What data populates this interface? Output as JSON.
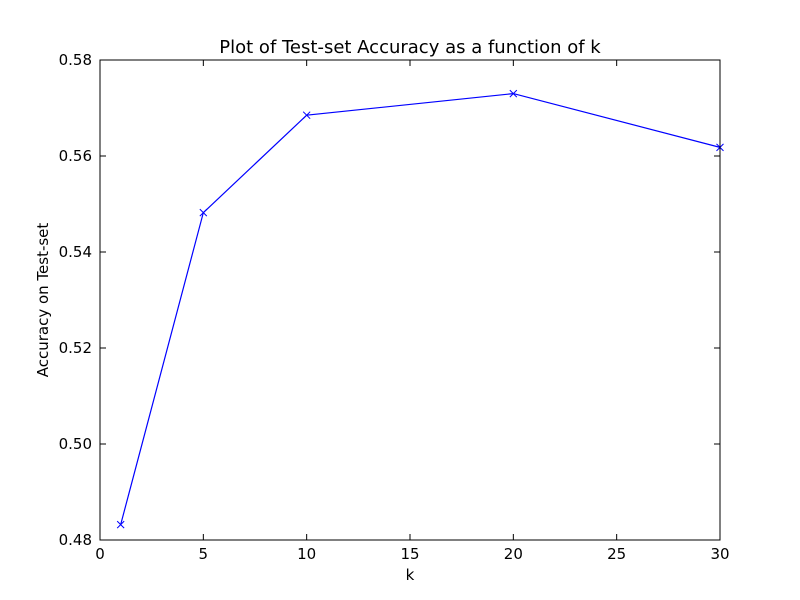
{
  "chart_data": {
    "type": "line",
    "title": "Plot of Test-set Accuracy as a function of k",
    "xlabel": "k",
    "ylabel": "Accuracy on Test-set",
    "xlim": [
      0,
      30
    ],
    "ylim": [
      0.48,
      0.58
    ],
    "xticks": [
      0,
      5,
      10,
      15,
      20,
      25,
      30
    ],
    "xtick_labels": [
      "0",
      "5",
      "10",
      "15",
      "20",
      "25",
      "30"
    ],
    "yticks": [
      0.48,
      0.5,
      0.52,
      0.54,
      0.56,
      0.58
    ],
    "ytick_labels": [
      "0.48",
      "0.50",
      "0.52",
      "0.54",
      "0.56",
      "0.58"
    ],
    "grid": false,
    "series": [
      {
        "x": [
          1,
          5,
          10,
          20,
          30
        ],
        "y": [
          0.4832,
          0.5482,
          0.5685,
          0.573,
          0.5618
        ],
        "color": "#0000ff",
        "marker": "x"
      }
    ]
  }
}
